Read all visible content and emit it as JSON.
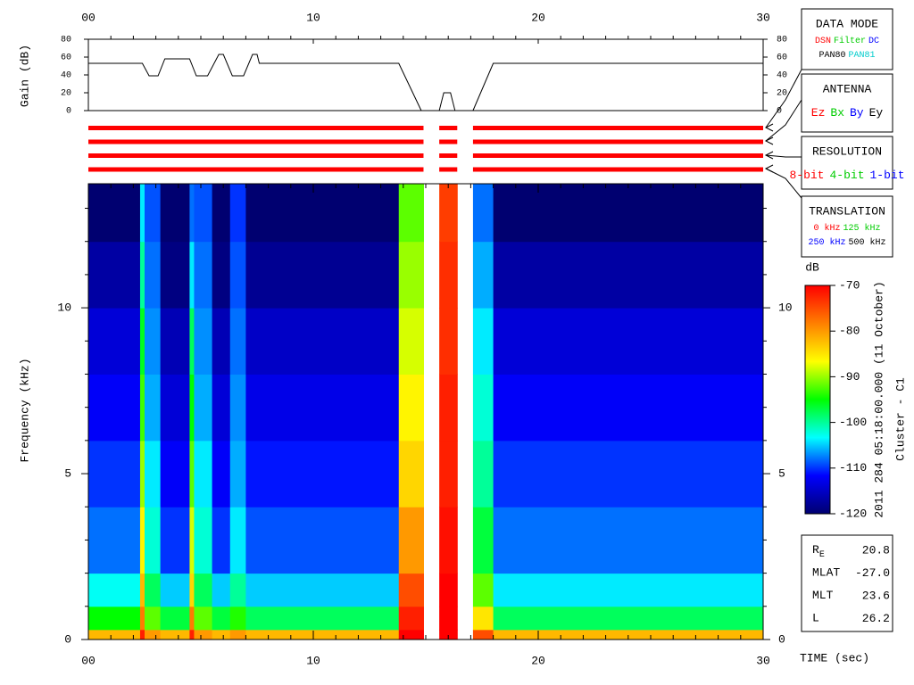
{
  "chart_data": [
    {
      "type": "line",
      "ylabel": "Gain (dB)",
      "color": "#000000",
      "x": [
        0,
        2.4,
        2.7,
        3.1,
        3.4,
        4.5,
        4.8,
        5.3,
        5.8,
        6.0,
        6.4,
        6.9,
        7.3,
        7.5,
        7.6,
        13.8,
        14.8,
        15.2,
        15.6,
        15.8,
        16.1,
        16.3,
        16.8,
        17.1,
        18.0,
        30
      ],
      "values": [
        53,
        53,
        39,
        39,
        58,
        58,
        39,
        39,
        63,
        63,
        39,
        39,
        63,
        63,
        53,
        53,
        0,
        null,
        0,
        20,
        20,
        0,
        null,
        0,
        53,
        53
      ],
      "xlim": [
        0,
        30
      ],
      "ylim": [
        0,
        80
      ],
      "xticks": [
        {
          "value": 0,
          "label": "00"
        },
        10,
        20,
        30
      ],
      "yticks": [
        0,
        20,
        40,
        60,
        80
      ]
    },
    {
      "type": "segments",
      "color": "#ff0000",
      "rows": 4,
      "xlim": [
        0,
        30
      ],
      "segments": [
        [
          0,
          14.9
        ],
        [
          15.6,
          16.4
        ],
        [
          17.1,
          30
        ]
      ]
    },
    {
      "type": "spectrogram",
      "ylabel": "Frequency (kHz)",
      "xlabel": "TIME (sec)",
      "xlim": [
        0,
        30
      ],
      "ylim": [
        0,
        13.74
      ],
      "xticks": [
        {
          "value": 0,
          "label": "00"
        },
        10,
        20,
        30
      ],
      "yticks": [
        0,
        5,
        10
      ],
      "xminorticks": [
        1,
        2,
        3,
        4,
        5,
        6,
        7,
        8,
        9,
        11,
        12,
        13,
        14,
        15,
        16,
        17,
        18,
        19,
        21,
        22,
        23,
        24,
        25,
        26,
        27,
        28,
        29
      ],
      "yminorticks": [
        1,
        2,
        3,
        4,
        6,
        7,
        8,
        9,
        11,
        12,
        13
      ],
      "time_edges": [
        0,
        2.3,
        2.5,
        3.2,
        4.5,
        4.7,
        5.5,
        6.3,
        7.0,
        13.8,
        14.9,
        15.6,
        16.4,
        17.1,
        18.0,
        30
      ],
      "freq_edges": [
        0,
        0.3,
        1,
        2,
        4,
        6,
        8,
        10,
        12,
        13.74
      ],
      "values": [
        [
          -82,
          -72,
          -80,
          -82,
          -72,
          -80,
          -82,
          -80,
          -82,
          -70,
          null,
          -70,
          null,
          -75,
          -82
        ],
        [
          -95,
          -78,
          -92,
          -97,
          -78,
          -92,
          -97,
          -94,
          -98,
          -72,
          null,
          -70,
          null,
          -85,
          -98
        ],
        [
          -103,
          -82,
          -98,
          -105,
          -84,
          -98,
          -105,
          -100,
          -105,
          -75,
          null,
          -70,
          null,
          -92,
          -104
        ],
        [
          -108,
          -86,
          -102,
          -110,
          -88,
          -102,
          -110,
          -104,
          -109,
          -80,
          null,
          -71,
          null,
          -97,
          -108
        ],
        [
          -110,
          -90,
          -104,
          -112,
          -92,
          -104,
          -112,
          -106,
          -111,
          -84,
          null,
          -72,
          null,
          -100,
          -110
        ],
        [
          -112,
          -93,
          -106,
          -114,
          -95,
          -106,
          -114,
          -107,
          -113,
          -86,
          null,
          -72,
          null,
          -102,
          -112
        ],
        [
          -114,
          -96,
          -107,
          -116,
          -98,
          -107,
          -116,
          -108,
          -115,
          -88,
          null,
          -73,
          null,
          -104,
          -114
        ],
        [
          -117,
          -100,
          -108,
          -119,
          -104,
          -108,
          -119,
          -109,
          -118,
          -90,
          null,
          -73,
          null,
          -106,
          -117
        ],
        [
          -120,
          -104,
          -109,
          -120,
          -108,
          -109,
          -120,
          -110,
          -120,
          -92,
          null,
          -74,
          null,
          -108,
          -120
        ]
      ],
      "colorbar": {
        "label": "dB",
        "lim": [
          -120,
          -70
        ],
        "ticks": [
          -70,
          -80,
          -90,
          -100,
          -110,
          -120
        ],
        "colors": [
          "#000070",
          "#0000ff",
          "#00ffff",
          "#00ff00",
          "#ffff00",
          "#ff8000",
          "#ff0000"
        ]
      },
      "annotations": [
        "2011 284 05:18:00.000 (11 October)",
        "Cluster - C1"
      ]
    }
  ],
  "panels": [
    {
      "title": "DATA MODE",
      "lines": [
        [
          {
            "label": "DSN",
            "color": "#ff0000"
          },
          {
            "label": "Filter",
            "color": "#00cc00"
          },
          {
            "label": "DC",
            "color": "#0000ff"
          }
        ],
        [
          {
            "label": "PAN80",
            "color": "#000000"
          },
          {
            "label": "PAN81",
            "color": "#00cccc"
          }
        ]
      ]
    },
    {
      "title": "ANTENNA",
      "lines": [
        [
          {
            "label": "Ez",
            "color": "#ff0000"
          },
          {
            "label": "Bx",
            "color": "#00cc00"
          },
          {
            "label": "By",
            "color": "#0000ff"
          },
          {
            "label": "Ey",
            "color": "#000000"
          }
        ]
      ]
    },
    {
      "title": "RESOLUTION",
      "lines": [
        [
          {
            "label": "8-bit",
            "color": "#ff0000"
          },
          {
            "label": "4-bit",
            "color": "#00cc00"
          },
          {
            "label": "1-bit",
            "color": "#0000ff"
          }
        ]
      ]
    },
    {
      "title": "TRANSLATION",
      "lines": [
        [
          {
            "label": "0 kHz",
            "color": "#ff0000"
          },
          {
            "label": "125 kHz",
            "color": "#00cc00"
          }
        ],
        [
          {
            "label": "250 kHz",
            "color": "#0000ff"
          },
          {
            "label": "500 kHz",
            "color": "#000000"
          }
        ]
      ]
    }
  ],
  "ephemeris": [
    {
      "label": "R",
      "sub": "E",
      "value": "20.8"
    },
    {
      "label": "MLAT",
      "value": "-27.0"
    },
    {
      "label": "MLT",
      "value": "23.6"
    },
    {
      "label": "L",
      "value": "26.2"
    }
  ]
}
